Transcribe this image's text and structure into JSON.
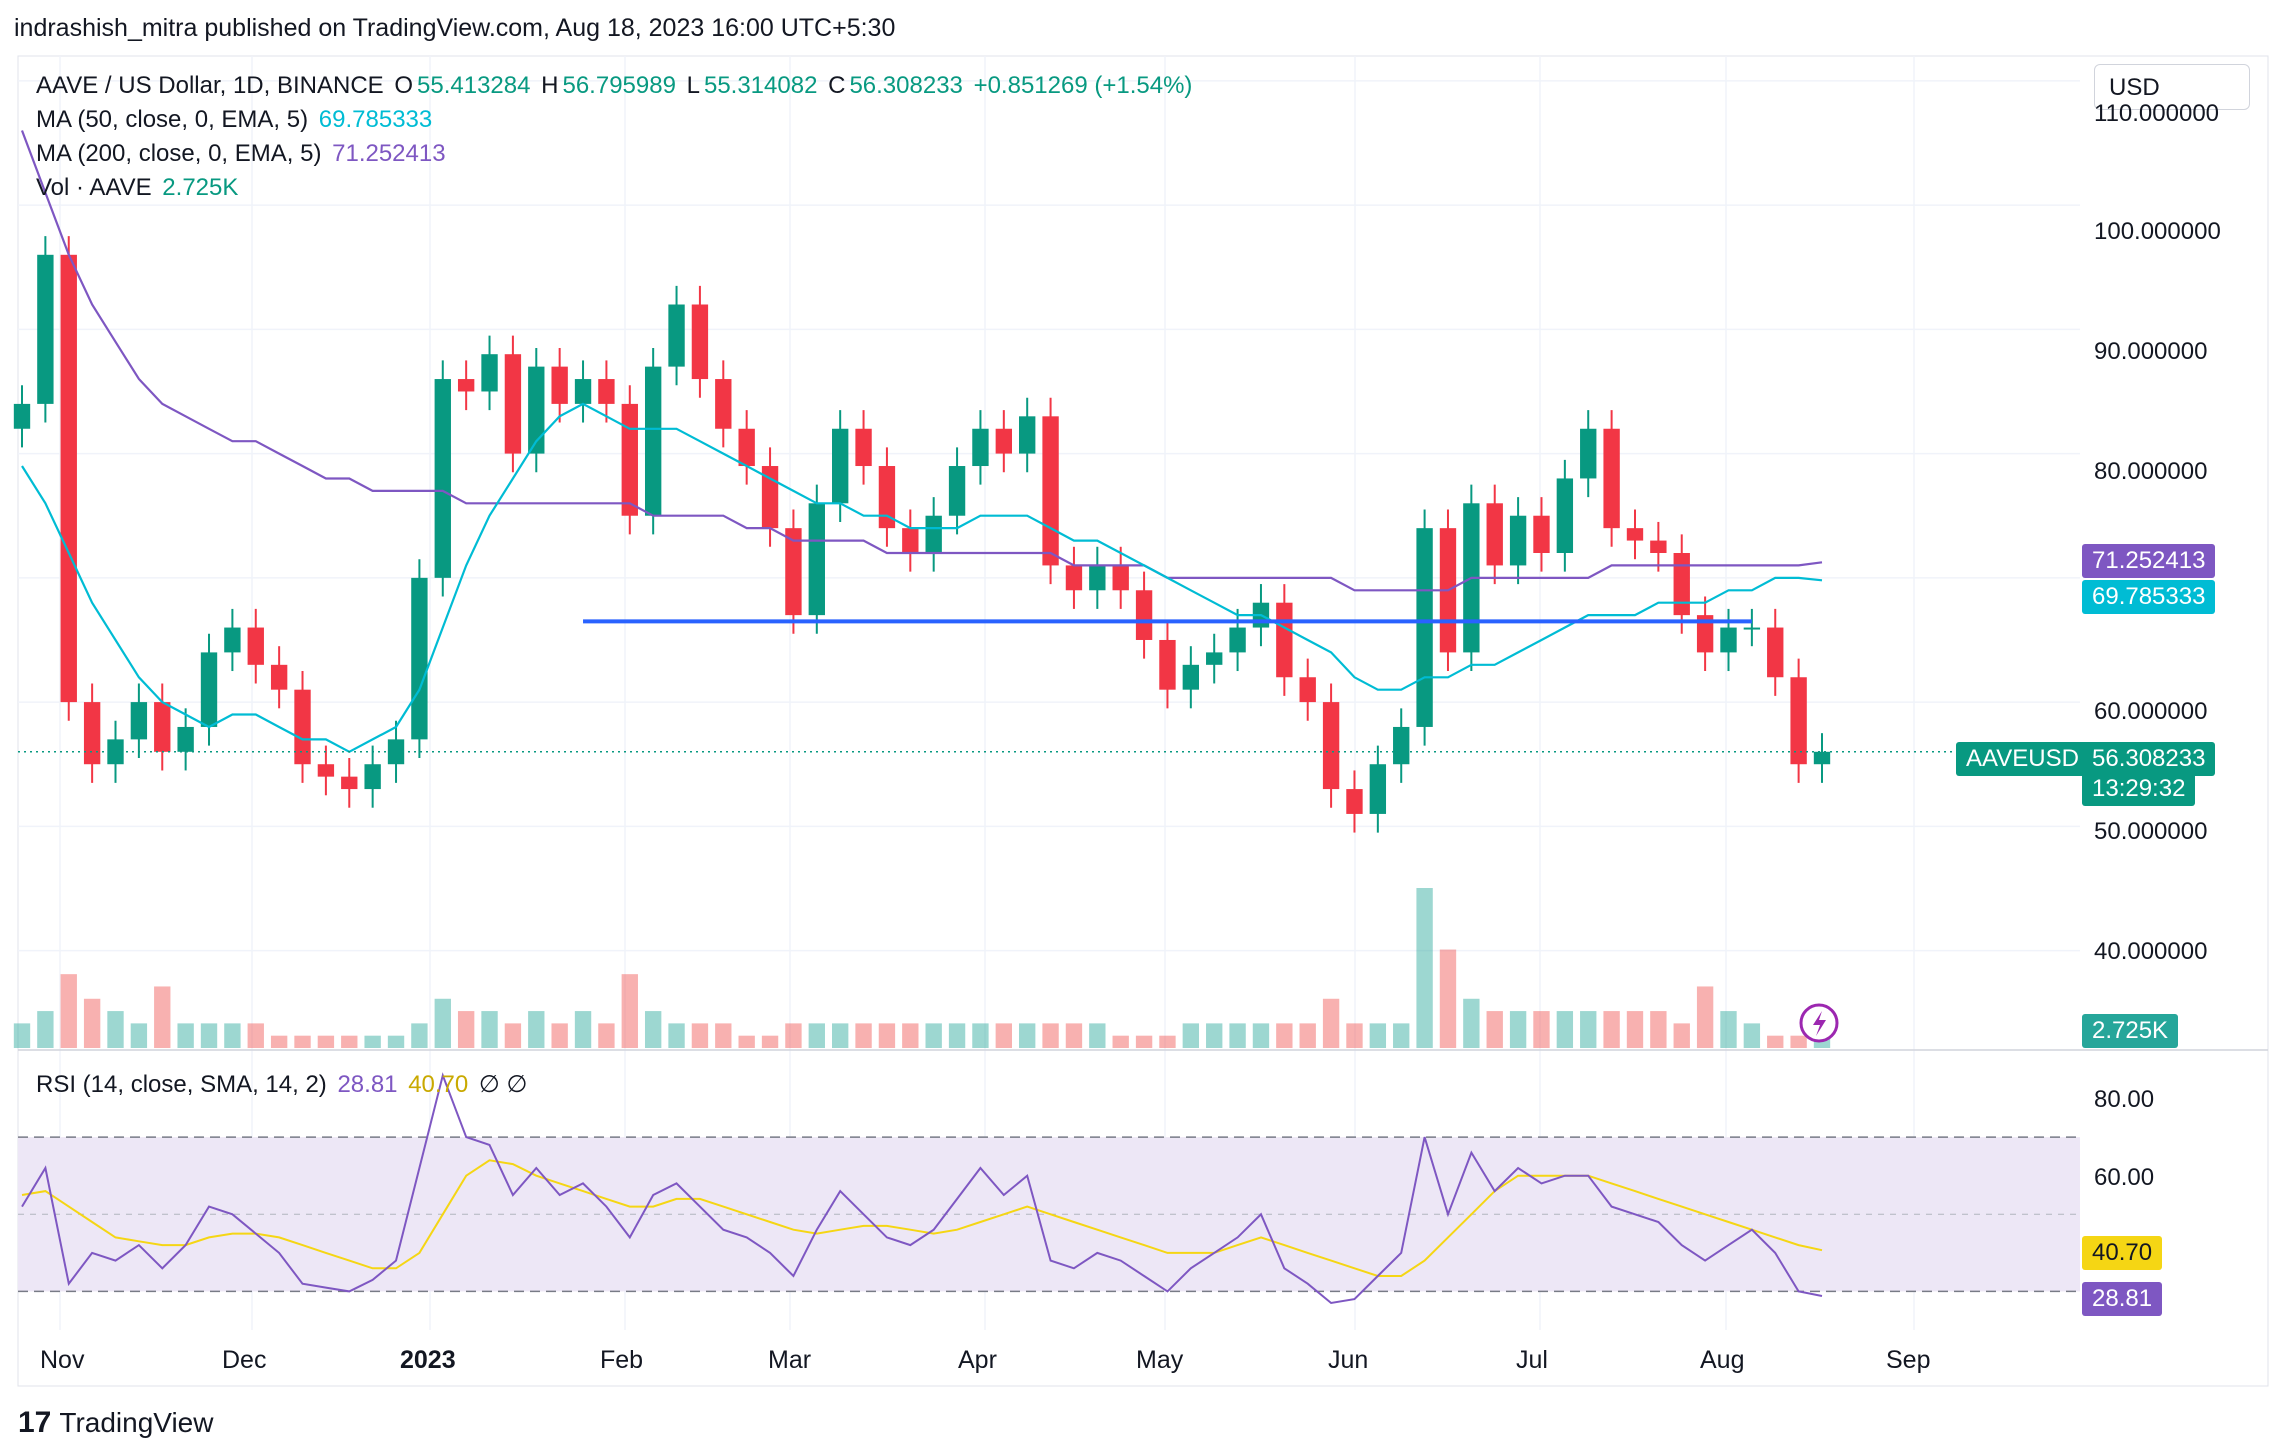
{
  "header": {
    "publisher_line": "indrashish_mitra published on TradingView.com, Aug 18, 2023 16:00 UTC+5:30"
  },
  "legend": {
    "symbol": "AAVE / US Dollar, 1D, BINANCE",
    "o_label": "O",
    "o_value": "55.413284",
    "h_label": "H",
    "h_value": "56.795989",
    "l_label": "L",
    "l_value": "55.314082",
    "c_label": "C",
    "c_value": "56.308233",
    "change": "+0.851269 (+1.54%)",
    "ma50_label": "MA (50, close, 0, EMA, 5)",
    "ma50_value": "69.785333",
    "ma200_label": "MA (200, close, 0, EMA, 5)",
    "ma200_value": "71.252413",
    "vol_label": "Vol · AAVE",
    "vol_value": "2.725K",
    "rsi_label": "RSI (14, close, SMA, 14, 2)",
    "rsi_value": "28.81",
    "rsi_sma_value": "40.70",
    "rsi_extra": "∅ ∅"
  },
  "currency_button": "USD",
  "price_axis": [
    "110.000000",
    "100.000000",
    "90.000000",
    "80.000000",
    "60.000000",
    "50.000000",
    "40.000000"
  ],
  "rsi_axis": [
    "80.00",
    "60.00"
  ],
  "tags": {
    "ma200": "71.252413",
    "ma50": "69.785333",
    "symbol": "AAVEUSD",
    "last_price": "56.308233",
    "countdown": "13:29:32",
    "volume": "2.725K",
    "rsi_sma": "40.70",
    "rsi": "28.81"
  },
  "x_axis": [
    "Nov",
    "Dec",
    "2023",
    "Feb",
    "Mar",
    "Apr",
    "May",
    "Jun",
    "Jul",
    "Aug",
    "Sep"
  ],
  "footer": {
    "brand": "TradingView",
    "mark": "17"
  },
  "colors": {
    "up": "#089981",
    "down": "#f23645",
    "ma50": "#00bcd4",
    "ma200": "#7e57c2",
    "support": "#2962ff",
    "rsi": "#7e57c2",
    "rsi_sma": "#f5d614",
    "rsi_band": "#ede7f6"
  },
  "chart_data": {
    "type": "candlestick",
    "title": "AAVE / US Dollar, 1D, BINANCE",
    "ylim": [
      32,
      112
    ],
    "support_level": 66.5,
    "x": [
      "Nov",
      "Nov",
      "Nov",
      "Nov",
      "Nov",
      "Nov",
      "Nov",
      "Nov",
      "Dec",
      "Dec",
      "Dec",
      "Dec",
      "Dec",
      "Dec",
      "Dec",
      "Dec",
      "Jan",
      "Jan",
      "Jan",
      "Jan",
      "Jan",
      "Jan",
      "Jan",
      "Jan",
      "Feb",
      "Feb",
      "Feb",
      "Feb",
      "Feb",
      "Feb",
      "Feb",
      "Feb",
      "Mar",
      "Mar",
      "Mar",
      "Mar",
      "Mar",
      "Mar",
      "Mar",
      "Mar",
      "Apr",
      "Apr",
      "Apr",
      "Apr",
      "Apr",
      "Apr",
      "Apr",
      "Apr",
      "May",
      "May",
      "May",
      "May",
      "May",
      "May",
      "May",
      "May",
      "Jun",
      "Jun",
      "Jun",
      "Jun",
      "Jun",
      "Jun",
      "Jun",
      "Jun",
      "Jul",
      "Jul",
      "Jul",
      "Jul",
      "Jul",
      "Jul",
      "Jul",
      "Jul",
      "Aug",
      "Aug",
      "Aug",
      "Aug",
      "Aug",
      "Aug"
    ],
    "close": [
      84,
      96,
      60,
      55,
      57,
      60,
      56,
      58,
      64,
      66,
      63,
      61,
      55,
      54,
      53,
      55,
      57,
      70,
      86,
      85,
      88,
      80,
      87,
      84,
      86,
      84,
      75,
      87,
      92,
      86,
      82,
      79,
      74,
      67,
      76,
      82,
      79,
      74,
      72,
      75,
      79,
      82,
      80,
      83,
      71,
      69,
      71,
      69,
      65,
      61,
      63,
      64,
      66,
      68,
      62,
      60,
      53,
      51,
      55,
      58,
      74,
      64,
      76,
      71,
      75,
      72,
      78,
      82,
      74,
      73,
      72,
      67,
      64,
      66,
      66,
      62,
      55,
      56
    ],
    "ma50": [
      79,
      76,
      72,
      68,
      65,
      62,
      60,
      59,
      58,
      59,
      59,
      58,
      57,
      57,
      56,
      57,
      58,
      61,
      66,
      71,
      75,
      78,
      81,
      83,
      84,
      83,
      82,
      82,
      82,
      81,
      80,
      79,
      78,
      77,
      76,
      76,
      75,
      75,
      74,
      74,
      74,
      75,
      75,
      75,
      74,
      73,
      73,
      72,
      71,
      70,
      69,
      68,
      67,
      67,
      66,
      65,
      64,
      62,
      61,
      61,
      62,
      62,
      63,
      63,
      64,
      65,
      66,
      67,
      67,
      67,
      68,
      68,
      68,
      69,
      69,
      70,
      70,
      69.8
    ],
    "ma200": [
      106,
      101,
      96,
      92,
      89,
      86,
      84,
      83,
      82,
      81,
      81,
      80,
      79,
      78,
      78,
      77,
      77,
      77,
      77,
      76,
      76,
      76,
      76,
      76,
      76,
      76,
      76,
      75,
      75,
      75,
      75,
      74,
      74,
      73,
      73,
      73,
      73,
      72,
      72,
      72,
      72,
      72,
      72,
      72,
      72,
      71,
      71,
      71,
      71,
      70,
      70,
      70,
      70,
      70,
      70,
      70,
      70,
      69,
      69,
      69,
      69,
      69,
      70,
      70,
      70,
      70,
      70,
      70,
      71,
      71,
      71,
      71,
      71,
      71,
      71,
      71,
      71,
      71.25
    ],
    "volume": [
      2,
      3,
      6,
      4,
      3,
      2,
      5,
      2,
      2,
      2,
      2,
      1,
      1,
      1,
      1,
      1,
      1,
      2,
      4,
      3,
      3,
      2,
      3,
      2,
      3,
      2,
      6,
      3,
      2,
      2,
      2,
      1,
      1,
      2,
      2,
      2,
      2,
      2,
      2,
      2,
      2,
      2,
      2,
      2,
      2,
      2,
      2,
      1,
      1,
      1,
      2,
      2,
      2,
      2,
      2,
      2,
      4,
      2,
      2,
      2,
      13,
      8,
      4,
      3,
      3,
      3,
      3,
      3,
      3,
      3,
      3,
      2,
      5,
      3,
      2,
      1,
      1,
      1
    ],
    "rsi": [
      52,
      62,
      32,
      40,
      38,
      42,
      36,
      42,
      52,
      50,
      45,
      40,
      32,
      31,
      30,
      33,
      38,
      62,
      86,
      70,
      68,
      55,
      62,
      55,
      58,
      52,
      44,
      55,
      58,
      52,
      46,
      44,
      40,
      34,
      46,
      56,
      50,
      44,
      42,
      46,
      54,
      62,
      55,
      60,
      38,
      36,
      40,
      38,
      34,
      30,
      36,
      40,
      44,
      50,
      36,
      32,
      27,
      28,
      34,
      40,
      70,
      50,
      66,
      56,
      62,
      58,
      60,
      60,
      52,
      50,
      48,
      42,
      38,
      42,
      46,
      40,
      30,
      28.81
    ],
    "rsi_sma": [
      55,
      56,
      52,
      48,
      44,
      43,
      42,
      42,
      44,
      45,
      45,
      44,
      42,
      40,
      38,
      36,
      36,
      40,
      50,
      60,
      64,
      63,
      60,
      58,
      56,
      54,
      52,
      52,
      54,
      54,
      52,
      50,
      48,
      46,
      45,
      46,
      47,
      47,
      46,
      45,
      46,
      48,
      50,
      52,
      50,
      48,
      46,
      44,
      42,
      40,
      40,
      40,
      42,
      44,
      42,
      40,
      38,
      36,
      34,
      34,
      38,
      44,
      50,
      56,
      60,
      60,
      60,
      60,
      58,
      56,
      54,
      52,
      50,
      48,
      46,
      44,
      42,
      40.7
    ]
  }
}
